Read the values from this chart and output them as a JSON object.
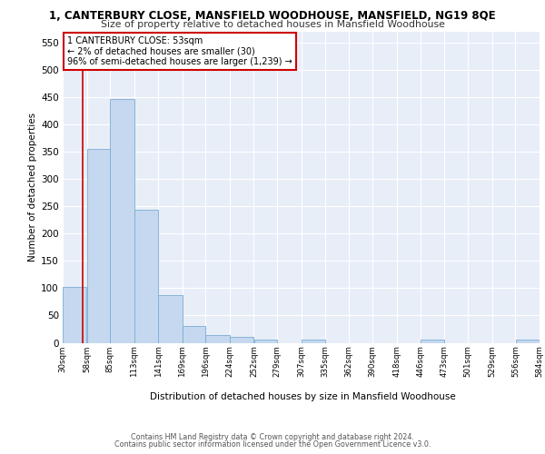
{
  "title": "1, CANTERBURY CLOSE, MANSFIELD WOODHOUSE, MANSFIELD, NG19 8QE",
  "subtitle": "Size of property relative to detached houses in Mansfield Woodhouse",
  "xlabel": "Distribution of detached houses by size in Mansfield Woodhouse",
  "ylabel": "Number of detached properties",
  "footer_line1": "Contains HM Land Registry data © Crown copyright and database right 2024.",
  "footer_line2": "Contains public sector information licensed under the Open Government Licence v3.0.",
  "annotation_line1": "1 CANTERBURY CLOSE: 53sqm",
  "annotation_line2": "← 2% of detached houses are smaller (30)",
  "annotation_line3": "96% of semi-detached houses are larger (1,239) →",
  "bar_color": "#c5d8ef",
  "bar_edge_color": "#7aadd4",
  "marker_color": "#cc0000",
  "marker_value": 53,
  "ylim": [
    0,
    570
  ],
  "yticks": [
    0,
    50,
    100,
    150,
    200,
    250,
    300,
    350,
    400,
    450,
    500,
    550
  ],
  "bin_edges": [
    30,
    58,
    85,
    113,
    141,
    169,
    196,
    224,
    252,
    279,
    307,
    335,
    362,
    390,
    418,
    446,
    473,
    501,
    529,
    556,
    584
  ],
  "bar_heights": [
    103,
    355,
    447,
    243,
    88,
    30,
    14,
    10,
    6,
    0,
    6,
    0,
    0,
    0,
    0,
    6,
    0,
    0,
    0,
    6
  ],
  "axes_background": "#e8eef8",
  "grid_color": "#ffffff"
}
